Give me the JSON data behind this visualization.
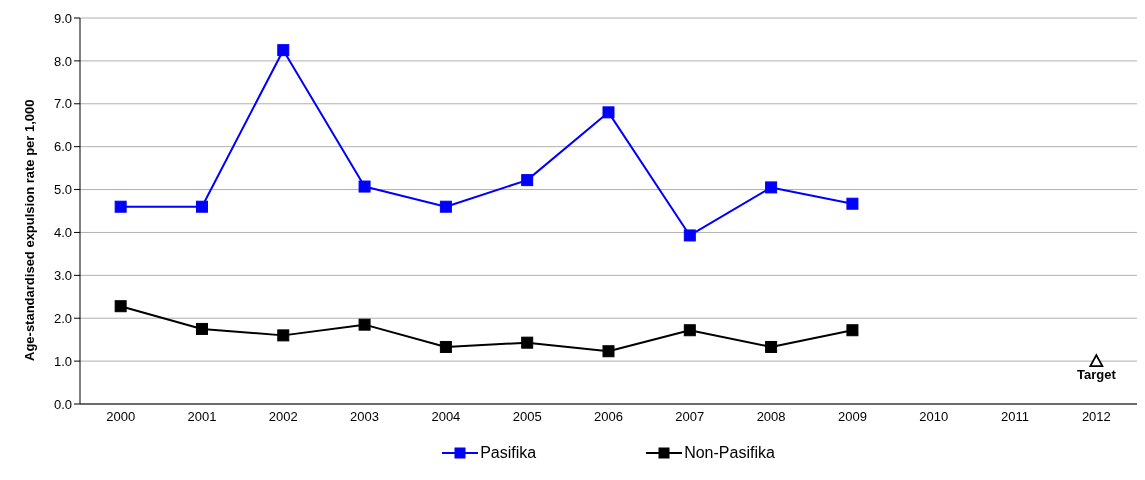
{
  "chart_data": {
    "type": "line",
    "ylabel": "Age-standardised expulsion rate per 1,000",
    "categories": [
      "2000",
      "2001",
      "2002",
      "2003",
      "2004",
      "2005",
      "2006",
      "2007",
      "2008",
      "2009",
      "2010",
      "2011",
      "2012"
    ],
    "series": [
      {
        "name": "Pasifika",
        "color": "#0000ff",
        "marker": "square",
        "values": [
          4.6,
          4.6,
          8.25,
          5.07,
          4.6,
          5.22,
          6.8,
          3.93,
          5.05,
          4.67,
          null,
          null,
          null
        ]
      },
      {
        "name": "Non-Pasifika",
        "color": "#000000",
        "marker": "square",
        "values": [
          2.28,
          1.75,
          1.6,
          1.85,
          1.33,
          1.43,
          1.23,
          1.72,
          1.33,
          1.72,
          null,
          null,
          null
        ]
      },
      {
        "name": "Target",
        "type": "scatter",
        "color": "#000000",
        "marker": "triangle",
        "values": [
          null,
          null,
          null,
          null,
          null,
          null,
          null,
          null,
          null,
          null,
          null,
          null,
          1.0
        ]
      }
    ],
    "ylim": [
      0,
      9
    ],
    "yticks": [
      {
        "value": 0,
        "label": "0.0"
      },
      {
        "value": 1,
        "label": "1.0"
      },
      {
        "value": 2,
        "label": "2.0"
      },
      {
        "value": 3,
        "label": "3.0"
      },
      {
        "value": 4,
        "label": "4.0"
      },
      {
        "value": 5,
        "label": "5.0"
      },
      {
        "value": 6,
        "label": "6.0"
      },
      {
        "value": 7,
        "label": "7.0"
      },
      {
        "value": 8,
        "label": "8.0"
      },
      {
        "value": 9,
        "label": "9.0"
      }
    ],
    "grid": "y",
    "legend": "bottom"
  }
}
